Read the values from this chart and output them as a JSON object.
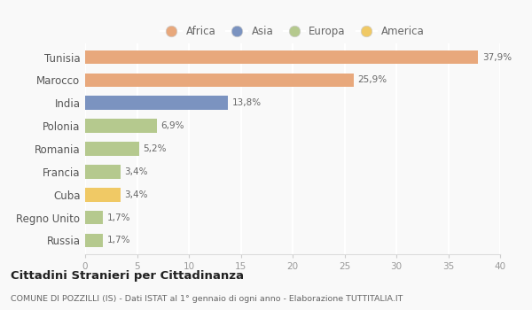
{
  "categories": [
    "Russia",
    "Regno Unito",
    "Cuba",
    "Francia",
    "Romania",
    "Polonia",
    "India",
    "Marocco",
    "Tunisia"
  ],
  "values": [
    1.7,
    1.7,
    3.4,
    3.4,
    5.2,
    6.9,
    13.8,
    25.9,
    37.9
  ],
  "labels": [
    "1,7%",
    "1,7%",
    "3,4%",
    "3,4%",
    "5,2%",
    "6,9%",
    "13,8%",
    "25,9%",
    "37,9%"
  ],
  "colors": [
    "#b5c98e",
    "#b5c98e",
    "#f0c965",
    "#b5c98e",
    "#b5c98e",
    "#b5c98e",
    "#7b93c0",
    "#e8a87c",
    "#e8a87c"
  ],
  "continent_colors": {
    "Africa": "#e8a87c",
    "Asia": "#7b93c0",
    "Europa": "#b5c98e",
    "America": "#f0c965"
  },
  "legend_labels": [
    "Africa",
    "Asia",
    "Europa",
    "America"
  ],
  "xlim": [
    0,
    40
  ],
  "xticks": [
    0,
    5,
    10,
    15,
    20,
    25,
    30,
    35,
    40
  ],
  "title": "Cittadini Stranieri per Cittadinanza",
  "subtitle": "COMUNE DI POZZILLI (IS) - Dati ISTAT al 1° gennaio di ogni anno - Elaborazione TUTTITALIA.IT",
  "bg_color": "#f9f9f9",
  "grid_color": "#ffffff",
  "bar_height": 0.6
}
